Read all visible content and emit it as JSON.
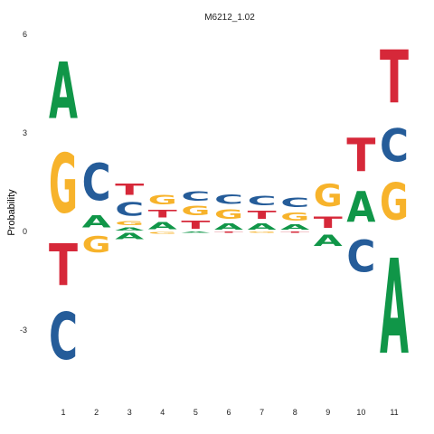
{
  "chart_data": {
    "type": "sequence-logo",
    "title": "M6212_1.02",
    "ylabel": "Probability",
    "xlabel": "",
    "ylim": [
      -4.6,
      6
    ],
    "yticks": [
      6,
      3,
      0,
      -3
    ],
    "positions": [
      "1",
      "2",
      "3",
      "4",
      "5",
      "6",
      "7",
      "8",
      "9",
      "10",
      "11"
    ],
    "colors": {
      "A": "#109648",
      "C": "#255C99",
      "G": "#F7B32B",
      "T": "#D62839"
    },
    "columns": [
      {
        "pos": [
          {
            "letter": "G",
            "height": 2.9
          },
          {
            "letter": "A",
            "height": 2.75
          }
        ],
        "neg": [
          {
            "letter": "T",
            "height": 2.05
          },
          {
            "letter": "C",
            "height": 2.3
          }
        ]
      },
      {
        "pos": [
          {
            "letter": "A",
            "height": 0.6
          },
          {
            "letter": "C",
            "height": 1.8
          }
        ],
        "neg": [
          {
            "letter": "G",
            "height": 0.8
          }
        ]
      },
      {
        "pos": [
          {
            "letter": "A",
            "height": 0.15
          },
          {
            "letter": "G",
            "height": 0.2
          },
          {
            "letter": "C",
            "height": 0.65
          },
          {
            "letter": "T",
            "height": 0.55
          }
        ],
        "neg": [
          {
            "letter": "A",
            "height": 0.3
          }
        ]
      },
      {
        "pos": [
          {
            "letter": "A",
            "height": 0.35
          },
          {
            "letter": "T",
            "height": 0.38
          },
          {
            "letter": "G",
            "height": 0.45
          }
        ],
        "neg": [
          {
            "letter": "G",
            "height": 0.08
          }
        ]
      },
      {
        "pos": [
          {
            "letter": "T",
            "height": 0.4
          },
          {
            "letter": "G",
            "height": 0.45
          },
          {
            "letter": "C",
            "height": 0.45
          }
        ],
        "neg": [
          {
            "letter": "A",
            "height": 0.05
          }
        ]
      },
      {
        "pos": [
          {
            "letter": "A",
            "height": 0.3
          },
          {
            "letter": "G",
            "height": 0.45
          },
          {
            "letter": "C",
            "height": 0.45
          }
        ],
        "neg": [
          {
            "letter": "T",
            "height": 0.06
          }
        ]
      },
      {
        "pos": [
          {
            "letter": "A",
            "height": 0.3
          },
          {
            "letter": "T",
            "height": 0.4
          },
          {
            "letter": "C",
            "height": 0.45
          }
        ],
        "neg": [
          {
            "letter": "G",
            "height": 0.05
          }
        ]
      },
      {
        "pos": [
          {
            "letter": "A",
            "height": 0.25
          },
          {
            "letter": "G",
            "height": 0.4
          },
          {
            "letter": "C",
            "height": 0.45
          }
        ],
        "neg": [
          {
            "letter": "T",
            "height": 0.06
          }
        ]
      },
      {
        "pos": [
          {
            "letter": "T",
            "height": 0.55
          },
          {
            "letter": "G",
            "height": 1.1
          }
        ],
        "neg": [
          {
            "letter": "A",
            "height": 0.55
          }
        ]
      },
      {
        "pos": [
          {
            "letter": "A",
            "height": 1.5
          },
          {
            "letter": "T",
            "height": 1.65
          }
        ],
        "neg": [
          {
            "letter": "C",
            "height": 1.55
          }
        ]
      },
      {
        "pos": [
          {
            "letter": "G",
            "height": 1.8
          },
          {
            "letter": "C",
            "height": 1.6
          },
          {
            "letter": "T",
            "height": 2.6
          }
        ],
        "neg": [
          {
            "letter": "A",
            "height": 4.65
          }
        ]
      }
    ]
  }
}
